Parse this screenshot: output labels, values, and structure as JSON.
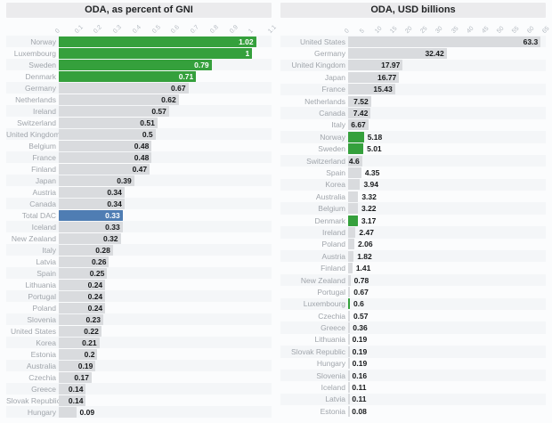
{
  "colors": {
    "green": "#35a03c",
    "blue": "#4f7db3",
    "gray": "#d9dbde",
    "title_strip": "#ebebed",
    "label_text": "#a0a5ab",
    "value_text": "#17191b",
    "tick_text": "#b4bac1"
  },
  "chart_data": [
    {
      "type": "bar",
      "orientation": "horizontal",
      "title": "ODA, as percent of GNI",
      "xlabel": "",
      "ylabel": "",
      "xlim": [
        0,
        1.1
      ],
      "grid": false,
      "legend": "none",
      "ticks": [
        "0",
        "0.1",
        "0.2",
        "0.3",
        "0.4",
        "0.5",
        "0.6",
        "0.7",
        "0.8",
        "0.9",
        "1",
        "1.1"
      ],
      "tick_values": [
        0,
        0.1,
        0.2,
        0.3,
        0.4,
        0.5,
        0.6,
        0.7,
        0.8,
        0.9,
        1,
        1.1
      ],
      "points": [
        {
          "label": "Norway",
          "value": 1.02,
          "display": "1.02",
          "color": "green"
        },
        {
          "label": "Luxembourg",
          "value": 1,
          "display": "1",
          "color": "green"
        },
        {
          "label": "Sweden",
          "value": 0.79,
          "display": "0.79",
          "color": "green"
        },
        {
          "label": "Denmark",
          "value": 0.71,
          "display": "0.71",
          "color": "green"
        },
        {
          "label": "Germany",
          "value": 0.67,
          "display": "0.67"
        },
        {
          "label": "Netherlands",
          "value": 0.62,
          "display": "0.62"
        },
        {
          "label": "Ireland",
          "value": 0.57,
          "display": "0.57"
        },
        {
          "label": "Switzerland",
          "value": 0.51,
          "display": "0.51"
        },
        {
          "label": "United Kingdom",
          "value": 0.5,
          "display": "0.5"
        },
        {
          "label": "Belgium",
          "value": 0.48,
          "display": "0.48"
        },
        {
          "label": "France",
          "value": 0.48,
          "display": "0.48"
        },
        {
          "label": "Finland",
          "value": 0.47,
          "display": "0.47"
        },
        {
          "label": "Japan",
          "value": 0.39,
          "display": "0.39"
        },
        {
          "label": "Austria",
          "value": 0.34,
          "display": "0.34"
        },
        {
          "label": "Canada",
          "value": 0.34,
          "display": "0.34"
        },
        {
          "label": "Total DAC",
          "value": 0.33,
          "display": "0.33",
          "color": "blue"
        },
        {
          "label": "Iceland",
          "value": 0.33,
          "display": "0.33"
        },
        {
          "label": "New Zealand",
          "value": 0.32,
          "display": "0.32"
        },
        {
          "label": "Italy",
          "value": 0.28,
          "display": "0.28"
        },
        {
          "label": "Latvia",
          "value": 0.26,
          "display": "0.26"
        },
        {
          "label": "Spain",
          "value": 0.25,
          "display": "0.25"
        },
        {
          "label": "Lithuania",
          "value": 0.24,
          "display": "0.24"
        },
        {
          "label": "Portugal",
          "value": 0.24,
          "display": "0.24"
        },
        {
          "label": "Poland",
          "value": 0.24,
          "display": "0.24"
        },
        {
          "label": "Slovenia",
          "value": 0.23,
          "display": "0.23"
        },
        {
          "label": "United States",
          "value": 0.22,
          "display": "0.22"
        },
        {
          "label": "Korea",
          "value": 0.21,
          "display": "0.21"
        },
        {
          "label": "Estonia",
          "value": 0.2,
          "display": "0.2"
        },
        {
          "label": "Australia",
          "value": 0.19,
          "display": "0.19"
        },
        {
          "label": "Czechia",
          "value": 0.17,
          "display": "0.17"
        },
        {
          "label": "Greece",
          "value": 0.14,
          "display": "0.14"
        },
        {
          "label": "Slovak Republic",
          "value": 0.14,
          "display": "0.14"
        },
        {
          "label": "Hungary",
          "value": 0.09,
          "display": "0.09"
        }
      ]
    },
    {
      "type": "bar",
      "orientation": "horizontal",
      "title": "ODA, USD billions",
      "xlabel": "",
      "ylabel": "",
      "xlim": [
        0,
        65
      ],
      "grid": false,
      "legend": "none",
      "ticks": [
        "0",
        "5",
        "10",
        "15",
        "20",
        "25",
        "30",
        "35",
        "40",
        "45",
        "50",
        "55",
        "60",
        "65"
      ],
      "tick_values": [
        0,
        5,
        10,
        15,
        20,
        25,
        30,
        35,
        40,
        45,
        50,
        55,
        60,
        65
      ],
      "points": [
        {
          "label": "United States",
          "value": 63.3,
          "display": "63.3"
        },
        {
          "label": "Germany",
          "value": 32.42,
          "display": "32.42"
        },
        {
          "label": "United Kingdom",
          "value": 17.97,
          "display": "17.97"
        },
        {
          "label": "Japan",
          "value": 16.77,
          "display": "16.77"
        },
        {
          "label": "France",
          "value": 15.43,
          "display": "15.43"
        },
        {
          "label": "Netherlands",
          "value": 7.52,
          "display": "7.52"
        },
        {
          "label": "Canada",
          "value": 7.42,
          "display": "7.42"
        },
        {
          "label": "Italy",
          "value": 6.67,
          "display": "6.67"
        },
        {
          "label": "Norway",
          "value": 5.18,
          "display": "5.18",
          "color": "green"
        },
        {
          "label": "Sweden",
          "value": 5.01,
          "display": "5.01",
          "color": "green"
        },
        {
          "label": "Switzerland",
          "value": 4.6,
          "display": "4.6"
        },
        {
          "label": "Spain",
          "value": 4.35,
          "display": "4.35"
        },
        {
          "label": "Korea",
          "value": 3.94,
          "display": "3.94"
        },
        {
          "label": "Australia",
          "value": 3.32,
          "display": "3.32"
        },
        {
          "label": "Belgium",
          "value": 3.22,
          "display": "3.22"
        },
        {
          "label": "Denmark",
          "value": 3.17,
          "display": "3.17",
          "color": "green"
        },
        {
          "label": "Ireland",
          "value": 2.47,
          "display": "2.47"
        },
        {
          "label": "Poland",
          "value": 2.06,
          "display": "2.06"
        },
        {
          "label": "Austria",
          "value": 1.82,
          "display": "1.82"
        },
        {
          "label": "Finland",
          "value": 1.41,
          "display": "1.41"
        },
        {
          "label": "New Zealand",
          "value": 0.78,
          "display": "0.78"
        },
        {
          "label": "Portugal",
          "value": 0.67,
          "display": "0.67"
        },
        {
          "label": "Luxembourg",
          "value": 0.6,
          "display": "0.6",
          "color": "green"
        },
        {
          "label": "Czechia",
          "value": 0.57,
          "display": "0.57"
        },
        {
          "label": "Greece",
          "value": 0.36,
          "display": "0.36"
        },
        {
          "label": "Lithuania",
          "value": 0.19,
          "display": "0.19"
        },
        {
          "label": "Slovak Republic",
          "value": 0.19,
          "display": "0.19"
        },
        {
          "label": "Hungary",
          "value": 0.19,
          "display": "0.19"
        },
        {
          "label": "Slovenia",
          "value": 0.16,
          "display": "0.16"
        },
        {
          "label": "Iceland",
          "value": 0.11,
          "display": "0.11"
        },
        {
          "label": "Latvia",
          "value": 0.11,
          "display": "0.11"
        },
        {
          "label": "Estonia",
          "value": 0.08,
          "display": "0.08"
        }
      ]
    }
  ]
}
